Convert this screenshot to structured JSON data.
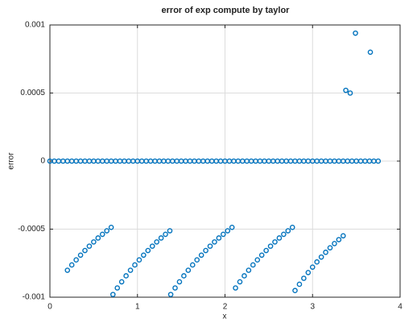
{
  "chart_data": {
    "type": "scatter",
    "title": "error of exp compute by taylor",
    "xlabel": "x",
    "ylabel": "error",
    "color": "#0072bd",
    "grid": true,
    "xlim": [
      0,
      4
    ],
    "xticks": [
      0,
      1,
      2,
      3,
      4
    ],
    "ylim": [
      -0.001,
      0.001
    ],
    "yticks": [
      -0.001,
      -0.0005,
      0,
      0.0005,
      0.001
    ],
    "x": [
      0,
      0.05,
      0.1,
      0.15,
      0.2,
      0.25,
      0.3,
      0.35,
      0.4,
      0.45,
      0.5,
      0.55,
      0.6,
      0.65,
      0.7,
      0.75,
      0.8,
      0.85,
      0.9,
      0.95,
      1,
      1.05,
      1.1,
      1.15,
      1.2,
      1.25,
      1.3,
      1.35,
      1.4,
      1.45,
      1.5,
      1.55,
      1.6,
      1.65,
      1.7,
      1.75,
      1.8,
      1.85,
      1.9,
      1.95,
      2,
      2.05,
      2.1,
      2.15,
      2.2,
      2.25,
      2.3,
      2.35,
      2.4,
      2.45,
      2.5,
      2.55,
      2.6,
      2.65,
      2.7,
      2.75,
      2.8,
      2.85,
      2.9,
      2.95,
      3,
      3.05,
      3.1,
      3.15,
      3.2,
      3.25,
      3.3,
      3.35,
      3.4,
      3.45,
      3.5,
      3.55,
      3.6,
      3.65,
      3.7,
      3.75,
      0.2,
      0.25,
      0.3,
      0.35,
      0.4,
      0.45,
      0.5,
      0.55,
      0.6,
      0.65,
      0.7,
      0.72,
      0.77,
      0.82,
      0.87,
      0.92,
      0.97,
      1.02,
      1.07,
      1.12,
      1.17,
      1.22,
      1.27,
      1.32,
      1.37,
      1.38,
      1.43,
      1.48,
      1.53,
      1.58,
      1.63,
      1.68,
      1.73,
      1.78,
      1.83,
      1.88,
      1.93,
      1.98,
      2.03,
      2.08,
      2.12,
      2.17,
      2.22,
      2.27,
      2.32,
      2.37,
      2.42,
      2.47,
      2.52,
      2.57,
      2.62,
      2.67,
      2.72,
      2.77,
      2.8,
      2.85,
      2.9,
      2.95,
      3,
      3.05,
      3.1,
      3.15,
      3.2,
      3.25,
      3.3,
      3.35,
      3.38,
      3.43,
      3.49,
      3.66
    ],
    "values": [
      0,
      0,
      0,
      0,
      0,
      0,
      0,
      0,
      0,
      0,
      0,
      0,
      0,
      0,
      0,
      0,
      0,
      0,
      0,
      0,
      0,
      0,
      0,
      0,
      0,
      0,
      0,
      0,
      0,
      0,
      0,
      0,
      0,
      0,
      0,
      0,
      0,
      0,
      0,
      0,
      0,
      0,
      0,
      0,
      0,
      0,
      0,
      0,
      0,
      0,
      0,
      0,
      0,
      0,
      0,
      0,
      0,
      0,
      0,
      0,
      0,
      0,
      0,
      0,
      0,
      0,
      0,
      0,
      0,
      0,
      0,
      0,
      0,
      0,
      0,
      0,
      -0.000802,
      -0.000763,
      -0.000726,
      -0.000691,
      -0.000657,
      -0.000625,
      -0.000594,
      -0.000565,
      -0.000538,
      -0.000512,
      -0.000487,
      -0.00098,
      -0.000932,
      -0.000887,
      -0.000843,
      -0.000802,
      -0.000763,
      -0.000726,
      -0.000691,
      -0.000657,
      -0.000625,
      -0.000594,
      -0.000565,
      -0.000538,
      -0.000512,
      -0.00098,
      -0.000932,
      -0.000887,
      -0.000843,
      -0.000802,
      -0.000763,
      -0.000726,
      -0.000691,
      -0.000657,
      -0.000625,
      -0.000594,
      -0.000565,
      -0.000538,
      -0.000512,
      -0.000487,
      -0.000932,
      -0.000887,
      -0.000843,
      -0.000802,
      -0.000763,
      -0.000726,
      -0.000691,
      -0.000657,
      -0.000625,
      -0.000594,
      -0.000565,
      -0.000538,
      -0.000512,
      -0.000487,
      -0.000951,
      -0.000905,
      -0.000861,
      -0.000819,
      -0.000779,
      -0.000741,
      -0.000705,
      -0.00067,
      -0.000637,
      -0.000606,
      -0.000577,
      -0.000549,
      0.00052,
      0.0005,
      0.00094,
      0.0008
    ]
  }
}
